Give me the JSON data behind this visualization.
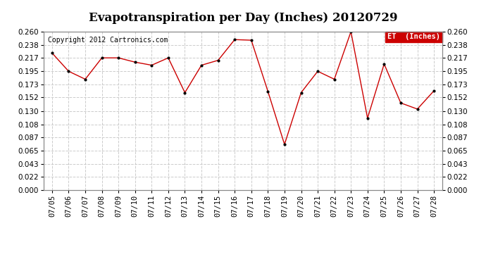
{
  "title": "Evapotranspiration per Day (Inches) 20120729",
  "copyright": "Copyright 2012 Cartronics.com",
  "legend_label": "ET  (Inches)",
  "dates": [
    "07/05",
    "07/06",
    "07/07",
    "07/08",
    "07/09",
    "07/10",
    "07/11",
    "07/12",
    "07/13",
    "07/14",
    "07/15",
    "07/16",
    "07/17",
    "07/18",
    "07/19",
    "07/20",
    "07/21",
    "07/22",
    "07/23",
    "07/24",
    "07/25",
    "07/26",
    "07/27",
    "07/28"
  ],
  "values": [
    0.225,
    0.195,
    0.182,
    0.217,
    0.217,
    0.21,
    0.205,
    0.217,
    0.16,
    0.205,
    0.213,
    0.247,
    0.246,
    0.162,
    0.075,
    0.16,
    0.195,
    0.182,
    0.26,
    0.118,
    0.207,
    0.143,
    0.133,
    0.163
  ],
  "line_color": "#cc0000",
  "marker": ".",
  "marker_color": "#000000",
  "bg_color": "#ffffff",
  "grid_color": "#cccccc",
  "ylim": [
    0.0,
    0.26
  ],
  "yticks": [
    0.0,
    0.022,
    0.043,
    0.065,
    0.087,
    0.108,
    0.13,
    0.152,
    0.173,
    0.195,
    0.217,
    0.238,
    0.26
  ],
  "title_fontsize": 12,
  "tick_fontsize": 7.5,
  "copyright_fontsize": 7,
  "legend_bg": "#cc0000",
  "legend_text_color": "#ffffff",
  "legend_fontsize": 7.5
}
